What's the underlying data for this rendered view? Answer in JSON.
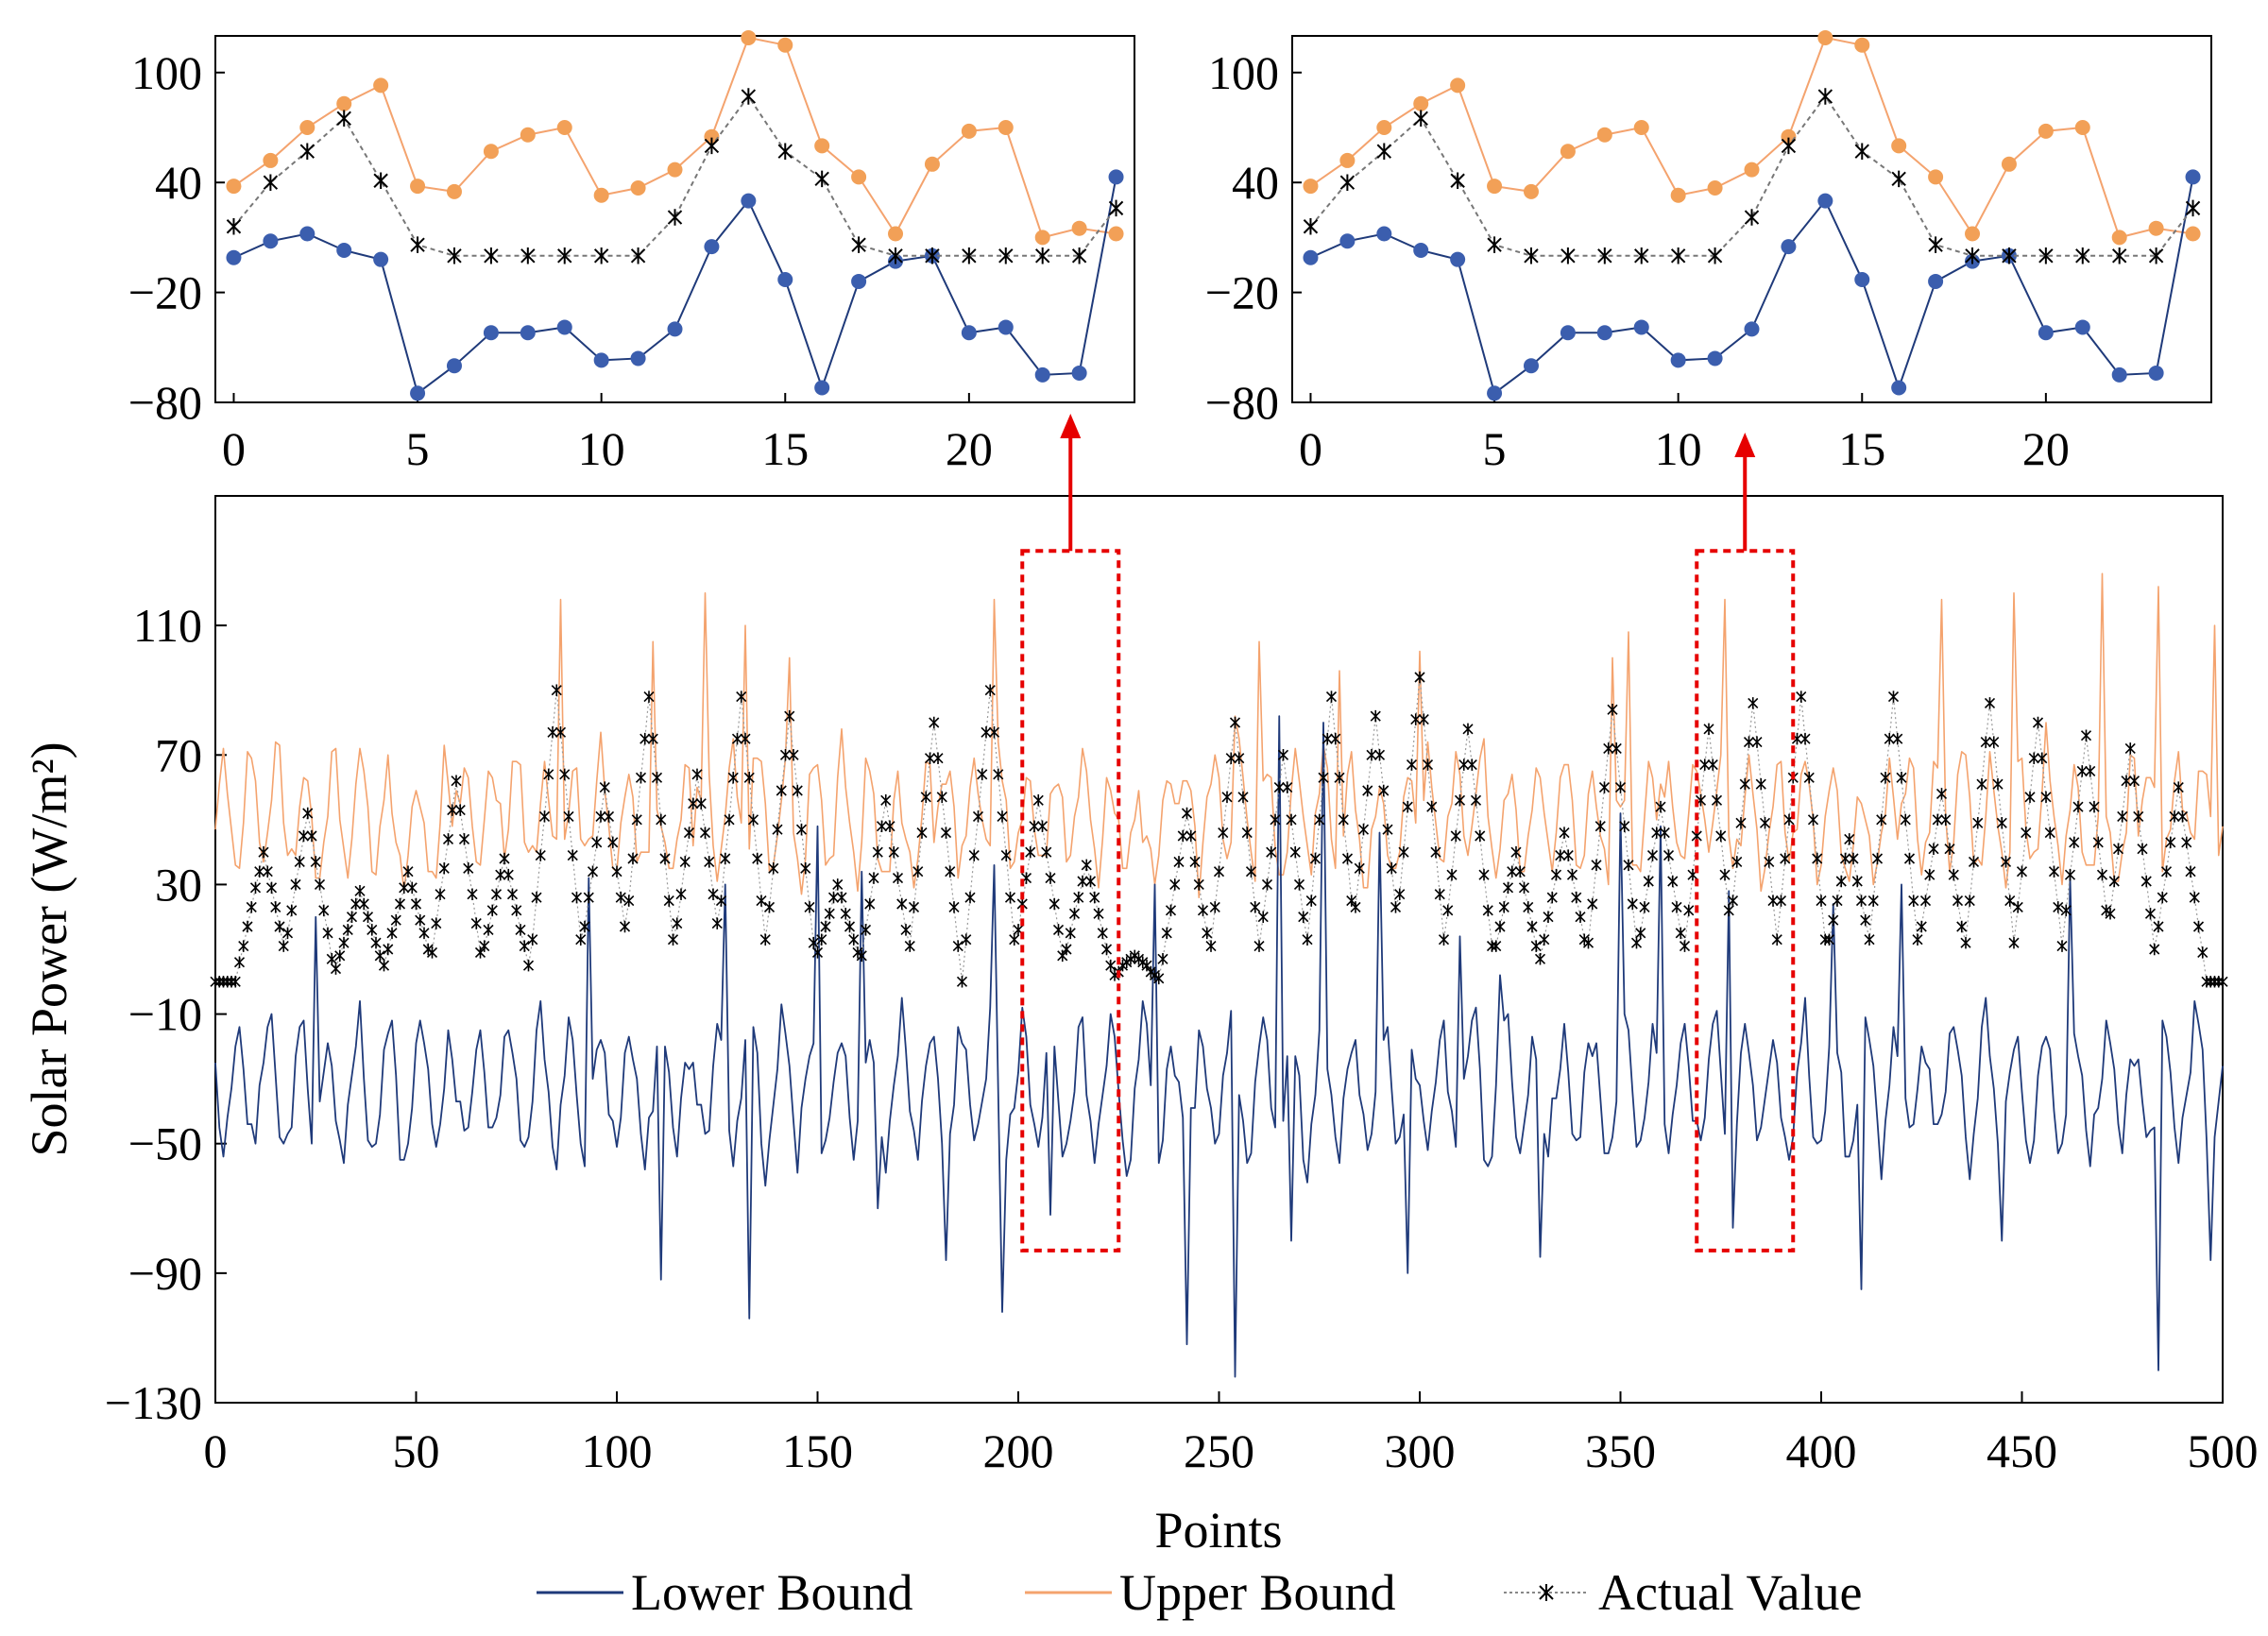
{
  "figure": {
    "legend": {
      "lower": "Lower Bound",
      "upper": "Upper Bound",
      "actual": "Actual Value"
    },
    "colors": {
      "lower": "#1f3a7a",
      "lower_marker": "#3b5eae",
      "upper": "#f4a36e",
      "upper_marker": "#f2a057",
      "actual": "#777777",
      "marker": "#000000",
      "highlight": "#e60000"
    }
  },
  "chart_data": [
    {
      "type": "line",
      "title": "",
      "xlabel": "",
      "ylabel": "",
      "xlim": [
        -0.5,
        24.5
      ],
      "ylim": [
        -80,
        120
      ],
      "xticks": [
        "0",
        "5",
        "10",
        "15",
        "20"
      ],
      "yticks": [
        "100",
        "40",
        "−20",
        "−80"
      ],
      "x": [
        0,
        1,
        2,
        3,
        4,
        5,
        6,
        7,
        8,
        9,
        10,
        11,
        12,
        13,
        14,
        15,
        16,
        17,
        18,
        19,
        20,
        21,
        22,
        23,
        24
      ],
      "series": [
        {
          "name": "Upper Bound",
          "values": [
            38,
            52,
            70,
            83,
            93,
            38,
            35,
            57,
            66,
            70,
            33,
            37,
            47,
            65,
            119,
            115,
            60,
            43,
            12,
            50,
            68,
            70,
            10,
            15,
            12
          ]
        },
        {
          "name": "Lower Bound",
          "values": [
            -1,
            8,
            12,
            3,
            -2,
            -75,
            -60,
            -42,
            -42,
            -39,
            -57,
            -56,
            -40,
            5,
            30,
            -13,
            -72,
            -14,
            -3,
            0,
            -42,
            -39,
            -65,
            -64,
            43
          ]
        },
        {
          "name": "Actual Value",
          "values": [
            16,
            40,
            57,
            75,
            41,
            6,
            0,
            0,
            0,
            0,
            0,
            0,
            21,
            60,
            87,
            57,
            42,
            6,
            0,
            0,
            0,
            0,
            0,
            0,
            26
          ]
        }
      ]
    },
    {
      "type": "line",
      "title": "",
      "xlabel": "",
      "ylabel": "",
      "xlim": [
        -0.5,
        24.5
      ],
      "ylim": [
        -80,
        120
      ],
      "xticks": [
        "0",
        "5",
        "10",
        "15",
        "20"
      ],
      "yticks": [
        "100",
        "40",
        "−20",
        "−80"
      ],
      "x": [
        0,
        1,
        2,
        3,
        4,
        5,
        6,
        7,
        8,
        9,
        10,
        11,
        12,
        13,
        14,
        15,
        16,
        17,
        18,
        19,
        20,
        21,
        22,
        23,
        24
      ],
      "series": [
        {
          "name": "Upper Bound",
          "values": [
            38,
            52,
            70,
            83,
            93,
            38,
            35,
            57,
            66,
            70,
            33,
            37,
            47,
            65,
            119,
            115,
            60,
            43,
            12,
            50,
            68,
            70,
            10,
            15,
            12
          ]
        },
        {
          "name": "Lower Bound",
          "values": [
            -1,
            8,
            12,
            3,
            -2,
            -75,
            -60,
            -42,
            -42,
            -39,
            -57,
            -56,
            -40,
            5,
            30,
            -13,
            -72,
            -14,
            -3,
            0,
            -42,
            -39,
            -65,
            -64,
            43
          ]
        },
        {
          "name": "Actual Value",
          "values": [
            16,
            40,
            57,
            75,
            41,
            6,
            0,
            0,
            0,
            0,
            0,
            0,
            21,
            60,
            87,
            57,
            42,
            6,
            0,
            0,
            0,
            0,
            0,
            0,
            26
          ]
        }
      ]
    },
    {
      "type": "line",
      "title": "",
      "xlabel": "Points",
      "ylabel": "Solar Power (W/m²)",
      "xlim": [
        0,
        500
      ],
      "ylim": [
        -130,
        150
      ],
      "xticks": [
        "0",
        "50",
        "100",
        "150",
        "200",
        "250",
        "300",
        "350",
        "400",
        "450",
        "500"
      ],
      "yticks": [
        "110",
        "70",
        "30",
        "−10",
        "−50",
        "−90",
        "−130"
      ],
      "n_points": 500,
      "upper_base": [
        52,
        56,
        64,
        58,
        44,
        30,
        37,
        48,
        60,
        66,
        56,
        45,
        36,
        42,
        60,
        68,
        64,
        48,
        35,
        34,
        40,
        52,
        62,
        58,
        44,
        33,
        30,
        38,
        54,
        64,
        62,
        48,
        36,
        35,
        44,
        58,
        70,
        60,
        46,
        34,
        30,
        42,
        58,
        62,
        52,
        40,
        33,
        30,
        38,
        50,
        56,
        48,
        40,
        33,
        30,
        36,
        50,
        64,
        60,
        44
      ],
      "lower_base": [
        -30,
        -38,
        -44,
        -40,
        -28,
        -12,
        -14,
        -24,
        -38,
        -46,
        -40,
        -30,
        -20,
        -6,
        -10,
        -26,
        -42,
        -52,
        -46,
        -32,
        -18,
        -6,
        -12,
        -30,
        -44,
        -48,
        -36,
        -24,
        -14,
        -18,
        -32,
        -46,
        -50,
        -40,
        -28,
        -16,
        -10,
        -22,
        -38,
        -48,
        -44,
        -32,
        -20,
        -12,
        -16,
        -30,
        -44,
        -52,
        -44,
        -30,
        -18,
        -8,
        -12,
        -28,
        -42,
        -48,
        -38,
        -24,
        -14,
        -20
      ],
      "actual_peaks": [
        {
          "x": 12,
          "y": 40
        },
        {
          "x": 23,
          "y": 52
        },
        {
          "x": 36,
          "y": 28
        },
        {
          "x": 48,
          "y": 34
        },
        {
          "x": 60,
          "y": 62
        },
        {
          "x": 72,
          "y": 38
        },
        {
          "x": 85,
          "y": 90
        },
        {
          "x": 97,
          "y": 60
        },
        {
          "x": 108,
          "y": 88
        },
        {
          "x": 120,
          "y": 64
        },
        {
          "x": 131,
          "y": 88
        },
        {
          "x": 143,
          "y": 82
        },
        {
          "x": 155,
          "y": 30
        },
        {
          "x": 167,
          "y": 56
        },
        {
          "x": 179,
          "y": 80
        },
        {
          "x": 193,
          "y": 90
        },
        {
          "x": 205,
          "y": 56
        },
        {
          "x": 217,
          "y": 36
        },
        {
          "x": 229,
          "y": 8
        },
        {
          "x": 242,
          "y": 52
        },
        {
          "x": 254,
          "y": 80
        },
        {
          "x": 266,
          "y": 70
        },
        {
          "x": 278,
          "y": 88
        },
        {
          "x": 289,
          "y": 82
        },
        {
          "x": 300,
          "y": 94
        },
        {
          "x": 312,
          "y": 78
        },
        {
          "x": 324,
          "y": 40
        },
        {
          "x": 336,
          "y": 46
        },
        {
          "x": 348,
          "y": 84
        },
        {
          "x": 360,
          "y": 54
        },
        {
          "x": 372,
          "y": 78
        },
        {
          "x": 383,
          "y": 86
        },
        {
          "x": 395,
          "y": 88
        },
        {
          "x": 407,
          "y": 44
        },
        {
          "x": 418,
          "y": 88
        },
        {
          "x": 430,
          "y": 58
        },
        {
          "x": 442,
          "y": 86
        },
        {
          "x": 454,
          "y": 80
        },
        {
          "x": 466,
          "y": 76
        },
        {
          "x": 477,
          "y": 72
        },
        {
          "x": 489,
          "y": 60
        }
      ],
      "upper_spikes": [
        {
          "x": 86,
          "y": 118
        },
        {
          "x": 109,
          "y": 105
        },
        {
          "x": 122,
          "y": 120
        },
        {
          "x": 132,
          "y": 110
        },
        {
          "x": 143,
          "y": 100
        },
        {
          "x": 194,
          "y": 118
        },
        {
          "x": 254,
          "y": 82
        },
        {
          "x": 260,
          "y": 105
        },
        {
          "x": 280,
          "y": 96
        },
        {
          "x": 300,
          "y": 102
        },
        {
          "x": 348,
          "y": 100
        },
        {
          "x": 352,
          "y": 108
        },
        {
          "x": 376,
          "y": 118
        },
        {
          "x": 430,
          "y": 118
        },
        {
          "x": 448,
          "y": 120
        },
        {
          "x": 470,
          "y": 126
        },
        {
          "x": 484,
          "y": 122
        },
        {
          "x": 498,
          "y": 110
        }
      ],
      "lower_spikes": [
        {
          "x": 111,
          "y": -92
        },
        {
          "x": 133,
          "y": -104
        },
        {
          "x": 165,
          "y": -70
        },
        {
          "x": 182,
          "y": -86
        },
        {
          "x": 196,
          "y": -102
        },
        {
          "x": 208,
          "y": -72
        },
        {
          "x": 242,
          "y": -112
        },
        {
          "x": 254,
          "y": -122
        },
        {
          "x": 268,
          "y": -80
        },
        {
          "x": 297,
          "y": -90
        },
        {
          "x": 330,
          "y": -85
        },
        {
          "x": 378,
          "y": -76
        },
        {
          "x": 410,
          "y": -95
        },
        {
          "x": 445,
          "y": -80
        },
        {
          "x": 484,
          "y": -120
        },
        {
          "x": 497,
          "y": -86
        }
      ],
      "lower_peaks": [
        {
          "x": 25,
          "y": 20
        },
        {
          "x": 93,
          "y": 32
        },
        {
          "x": 127,
          "y": 30
        },
        {
          "x": 150,
          "y": 48
        },
        {
          "x": 161,
          "y": 34
        },
        {
          "x": 194,
          "y": 36
        },
        {
          "x": 234,
          "y": 30
        },
        {
          "x": 265,
          "y": 82
        },
        {
          "x": 276,
          "y": 80
        },
        {
          "x": 290,
          "y": 46
        },
        {
          "x": 310,
          "y": 14
        },
        {
          "x": 320,
          "y": 2
        },
        {
          "x": 350,
          "y": 52
        },
        {
          "x": 360,
          "y": 48
        },
        {
          "x": 377,
          "y": 28
        },
        {
          "x": 403,
          "y": 24
        },
        {
          "x": 420,
          "y": 30
        },
        {
          "x": 462,
          "y": 32
        }
      ],
      "highlight_ranges": [
        [
          201,
          225
        ],
        [
          369,
          393
        ]
      ]
    }
  ]
}
